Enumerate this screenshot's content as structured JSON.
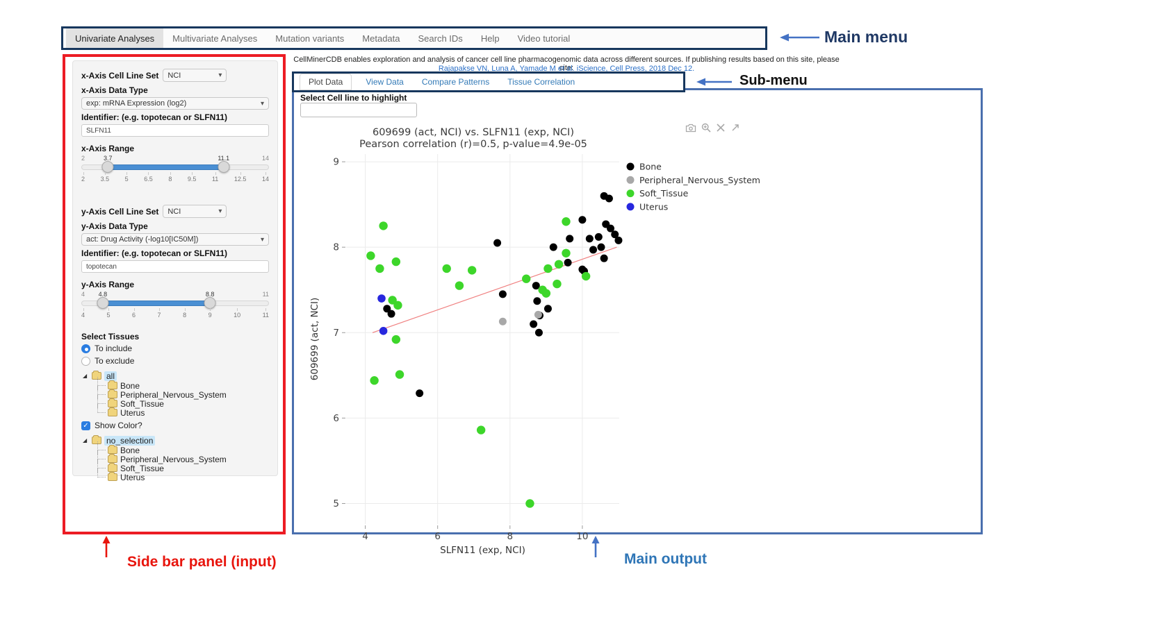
{
  "main_menu": {
    "items": [
      {
        "label": "Univariate Analyses",
        "active": true
      },
      {
        "label": "Multivariate Analyses",
        "active": false
      },
      {
        "label": "Mutation variants",
        "active": false
      },
      {
        "label": "Metadata",
        "active": false
      },
      {
        "label": "Search IDs",
        "active": false
      },
      {
        "label": "Help",
        "active": false
      },
      {
        "label": "Video tutorial",
        "active": false
      }
    ]
  },
  "citation": {
    "line1": "CellMinerCDB enables exploration and analysis of cancer cell line pharmacogenomic data across different sources. If publishing results based on this site, please cite:",
    "line2": "Rajapakse VN, Luna A, Yamade M et al. iScience, Cell Press, 2018 Dec 12."
  },
  "sub_menu": {
    "tabs": [
      {
        "label": "Plot Data",
        "active": true
      },
      {
        "label": "View Data",
        "active": false
      },
      {
        "label": "Compare Patterns",
        "active": false
      },
      {
        "label": "Tissue Correlation",
        "active": false
      }
    ]
  },
  "annotations": {
    "main_menu": "Main menu",
    "sub_menu": "Sub-menu",
    "sidebar": "Side bar panel (input)",
    "main_output": "Main output"
  },
  "sidebar": {
    "x_axis": {
      "cell_line_set_label": "x-Axis Cell Line Set",
      "cell_line_set_value": "NCI",
      "data_type_label": "x-Axis Data Type",
      "data_type_value": "exp: mRNA Expression (log2)",
      "identifier_label": "Identifier: (e.g. topotecan or SLFN11)",
      "identifier_value": "SLFN11",
      "range_label": "x-Axis Range",
      "range": {
        "min": 2,
        "max": 14,
        "from": 3.7,
        "to": 11.1,
        "ticks": [
          "2",
          "3.5",
          "5",
          "6.5",
          "8",
          "9.5",
          "11",
          "12.5",
          "14"
        ]
      }
    },
    "y_axis": {
      "cell_line_set_label": "y-Axis Cell Line Set",
      "cell_line_set_value": "NCI",
      "data_type_label": "y-Axis Data Type",
      "data_type_value": "act: Drug Activity (-log10[IC50M])",
      "identifier_label": "Identifier: (e.g. topotecan or SLFN11)",
      "identifier_value": "topotecan",
      "range_label": "y-Axis Range",
      "range": {
        "min": 4,
        "max": 11,
        "from": 4.8,
        "to": 8.8,
        "ticks": [
          "4",
          "5",
          "6",
          "7",
          "8",
          "9",
          "10",
          "11"
        ]
      }
    },
    "select_tissues": {
      "label": "Select Tissues",
      "options": [
        {
          "label": "To include",
          "selected": true
        },
        {
          "label": "To exclude",
          "selected": false
        }
      ]
    },
    "tree_include": {
      "root": "all",
      "children": [
        "Bone",
        "Peripheral_Nervous_System",
        "Soft_Tissue",
        "Uterus"
      ]
    },
    "show_color": {
      "label": "Show Color?",
      "checked": true
    },
    "tree_color": {
      "root": "no_selection",
      "children": [
        "Bone",
        "Peripheral_Nervous_System",
        "Soft_Tissue",
        "Uterus"
      ]
    }
  },
  "main_output": {
    "highlight_label": "Select Cell line to highlight",
    "highlight_value": "",
    "modebar_icons": [
      "camera-icon",
      "zoom-icon",
      "pan-icon",
      "autoscale-icon"
    ]
  },
  "chart_data": {
    "type": "scatter",
    "title": "609699 (act, NCI) vs. SLFN11 (exp, NCI)",
    "subtitle": "Pearson correlation (r)=0.5, p-value=4.9e-05",
    "xlabel": "SLFN11 (exp, NCI)",
    "ylabel": "609699 (act, NCI)",
    "xlim": [
      3.47,
      11.02
    ],
    "ylim": [
      4.76,
      9.09
    ],
    "xticks": [
      4,
      6,
      8,
      10
    ],
    "yticks": [
      5,
      6,
      7,
      8,
      9
    ],
    "grid": true,
    "legend_position": "right",
    "series": [
      {
        "name": "Bone",
        "color": "#000000",
        "r": 5.5,
        "points": [
          [
            4.6,
            7.28
          ],
          [
            4.72,
            7.22
          ],
          [
            5.5,
            6.29
          ],
          [
            7.65,
            8.05
          ],
          [
            7.8,
            7.45
          ],
          [
            8.72,
            7.55
          ],
          [
            8.75,
            7.37
          ],
          [
            9.05,
            7.28
          ],
          [
            8.82,
            7.2
          ],
          [
            8.65,
            7.1
          ],
          [
            8.8,
            7.0
          ],
          [
            9.2,
            8.0
          ],
          [
            9.65,
            8.1
          ],
          [
            9.6,
            7.82
          ],
          [
            10.0,
            7.74
          ],
          [
            10.0,
            8.32
          ],
          [
            10.2,
            8.1
          ],
          [
            10.45,
            8.12
          ],
          [
            10.3,
            7.97
          ],
          [
            10.52,
            8.0
          ],
          [
            10.6,
            7.87
          ],
          [
            10.6,
            8.6
          ],
          [
            10.74,
            8.57
          ],
          [
            10.65,
            8.27
          ],
          [
            10.78,
            8.22
          ],
          [
            10.9,
            8.15
          ],
          [
            11.0,
            8.08
          ],
          [
            10.05,
            7.72
          ]
        ]
      },
      {
        "name": "Peripheral_Nervous_System",
        "color": "#a8a8a8",
        "r": 5.5,
        "points": [
          [
            7.8,
            7.13
          ],
          [
            8.78,
            7.21
          ]
        ]
      },
      {
        "name": "Soft_Tissue",
        "color": "#3dd62a",
        "r": 6.2,
        "points": [
          [
            4.5,
            8.25
          ],
          [
            4.15,
            7.9
          ],
          [
            4.4,
            7.75
          ],
          [
            4.85,
            7.83
          ],
          [
            4.75,
            7.38
          ],
          [
            4.9,
            7.32
          ],
          [
            4.85,
            6.92
          ],
          [
            4.25,
            6.44
          ],
          [
            4.95,
            6.51
          ],
          [
            6.25,
            7.75
          ],
          [
            6.6,
            7.55
          ],
          [
            6.95,
            7.73
          ],
          [
            7.2,
            5.86
          ],
          [
            8.45,
            7.63
          ],
          [
            8.9,
            7.5
          ],
          [
            9.0,
            7.46
          ],
          [
            9.05,
            7.75
          ],
          [
            9.3,
            7.57
          ],
          [
            9.35,
            7.8
          ],
          [
            9.55,
            7.93
          ],
          [
            9.55,
            8.3
          ],
          [
            10.1,
            7.66
          ],
          [
            8.55,
            5.0
          ]
        ]
      },
      {
        "name": "Uterus",
        "color": "#2727de",
        "r": 5.8,
        "points": [
          [
            4.45,
            7.4
          ],
          [
            4.5,
            7.02
          ]
        ]
      }
    ],
    "trendline": {
      "color": "#f08080",
      "x1": 4.2,
      "y1": 7.0,
      "x2": 10.95,
      "y2": 8.0
    }
  }
}
